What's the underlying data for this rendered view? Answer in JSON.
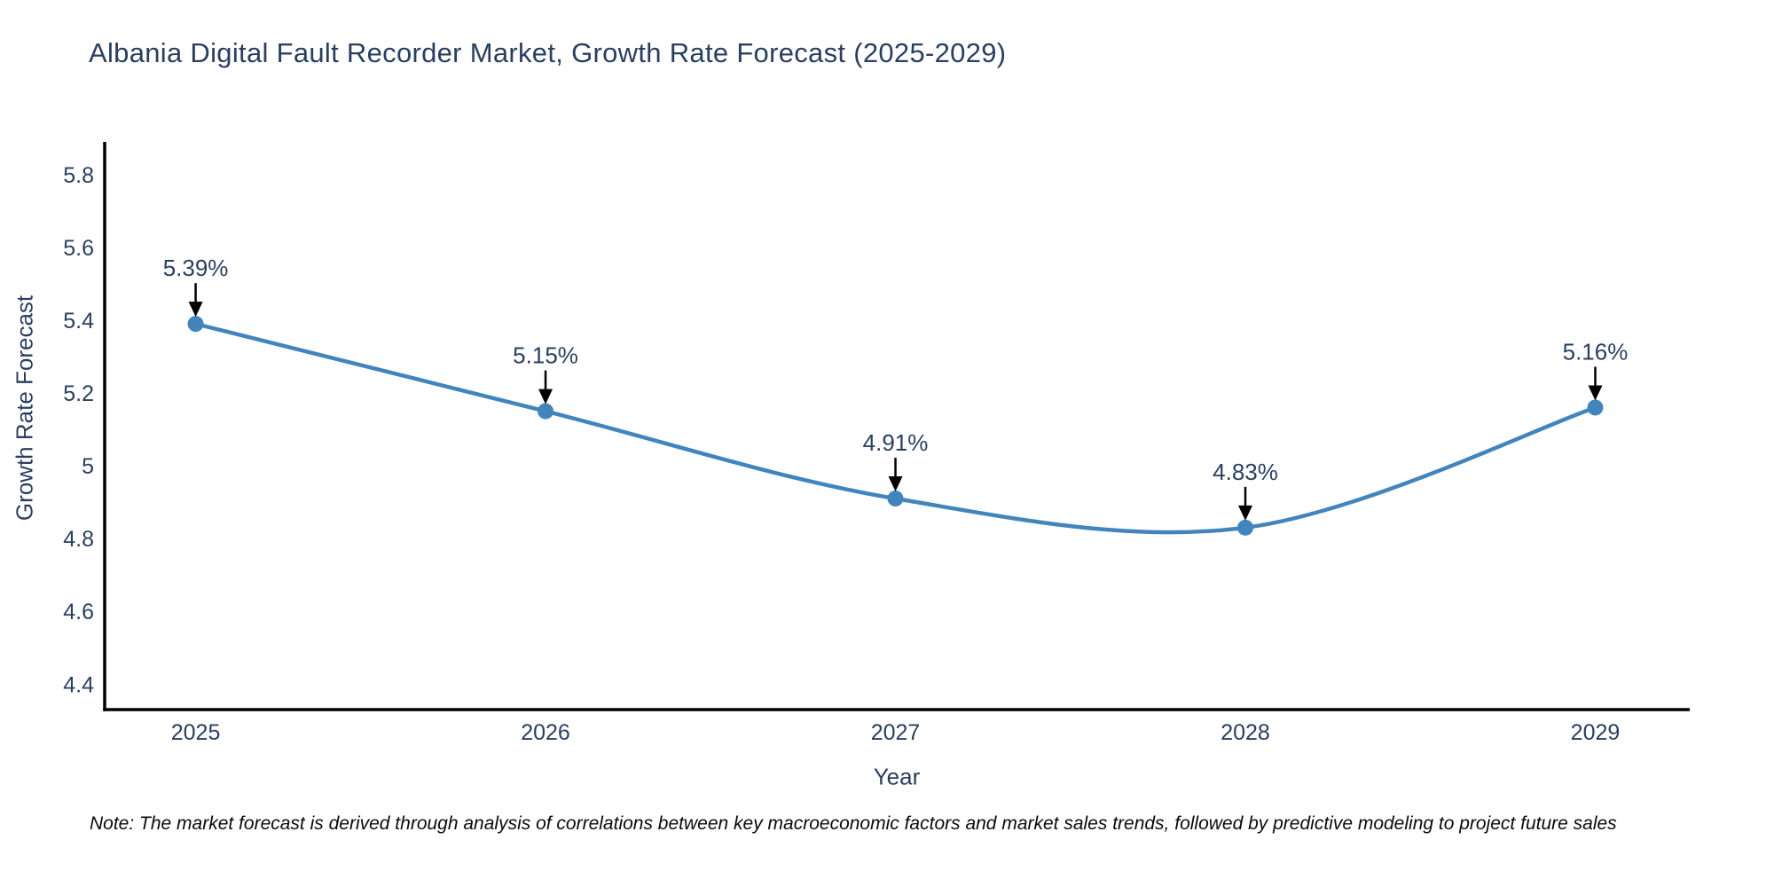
{
  "page": {
    "title": "Albania Digital Fault Recorder Market, Growth Rate Forecast (2025-2029)",
    "note": "Note: The market forecast is derived through analysis of correlations between key macroeconomic factors and market sales trends, followed by predictive modeling to project future sales"
  },
  "chart_data": {
    "type": "line",
    "title": "Albania Digital Fault Recorder Market, Growth Rate Forecast (2025-2029)",
    "xlabel": "Year",
    "ylabel": "Growth Rate Forecast",
    "x": [
      2025,
      2026,
      2027,
      2028,
      2029
    ],
    "y": [
      5.39,
      5.15,
      4.91,
      4.83,
      5.16
    ],
    "point_labels": [
      "5.39%",
      "5.15%",
      "4.91%",
      "4.83%",
      "5.16%"
    ],
    "x_tick_labels": [
      "2025",
      "2026",
      "2027",
      "2028",
      "2029"
    ],
    "y_tick_values": [
      5.8,
      5.6,
      5.4,
      5.2,
      5,
      4.8,
      4.6,
      4.4
    ],
    "xlim": [
      2024.74,
      2029.27
    ],
    "ylim": [
      4.33,
      5.89
    ],
    "grid": false,
    "legend": "none",
    "line_shape": "spline",
    "annotations_have_arrows": true,
    "colors": {
      "line": "#4285bd",
      "marker": "#4285bd",
      "axis": "#000000",
      "tick_label": "#2a3f5f",
      "annotation_text": "#2a3f5f",
      "arrow": "#000000",
      "title": "#2a3f5f",
      "note": "#0a0a0a",
      "background": "#ffffff"
    }
  }
}
